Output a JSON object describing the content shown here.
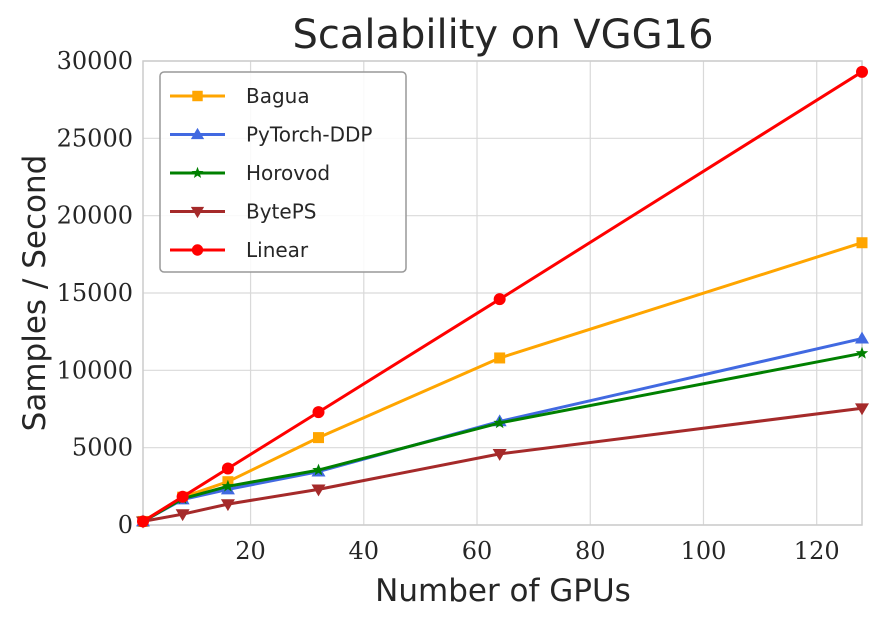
{
  "chart_data": {
    "type": "line",
    "title": "Scalability on VGG16",
    "xlabel": "Number of GPUs",
    "ylabel": "Samples / Second",
    "x": [
      1,
      8,
      16,
      32,
      64,
      128
    ],
    "xlim": [
      1,
      128
    ],
    "ylim": [
      0,
      30000
    ],
    "xticks": [
      20,
      40,
      60,
      80,
      100,
      120
    ],
    "yticks": [
      0,
      5000,
      10000,
      15000,
      20000,
      25000,
      30000
    ],
    "grid": true,
    "legend_position": "top-left",
    "series": [
      {
        "name": "Bagua",
        "color": "#FFA500",
        "marker": "square",
        "values": [
          230,
          1800,
          2800,
          5650,
          10800,
          18250
        ]
      },
      {
        "name": "PyTorch-DDP",
        "color": "#4169E1",
        "marker": "triangle-up",
        "values": [
          230,
          1650,
          2300,
          3450,
          6700,
          12050
        ]
      },
      {
        "name": "Horovod",
        "color": "#008000",
        "marker": "star",
        "values": [
          230,
          1700,
          2500,
          3550,
          6600,
          11100
        ]
      },
      {
        "name": "BytePS",
        "color": "#A52A2A",
        "marker": "triangle-down",
        "values": [
          230,
          700,
          1350,
          2300,
          4600,
          7550
        ]
      },
      {
        "name": "Linear",
        "color": "#FF0000",
        "marker": "circle",
        "values": [
          230,
          1825,
          3650,
          7300,
          14600,
          29300
        ]
      }
    ]
  }
}
